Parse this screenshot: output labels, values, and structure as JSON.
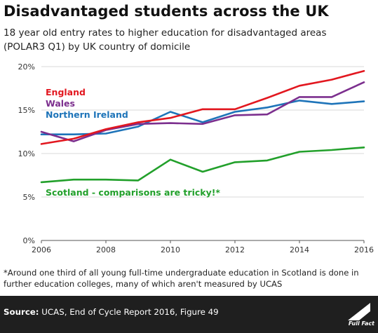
{
  "title": "Disadvantaged students across the UK",
  "subtitle_lines": [
    "18 year old entry rates to higher education for disadvantaged areas",
    "(POLAR3 Q1) by UK country of domicile"
  ],
  "footnote_lines": [
    "*Around one third of all young full-time undergraduate education in Scotland is done in",
    "further education colleges, many of which aren't measured by UCAS"
  ],
  "source": {
    "label": "Source:",
    "text": " UCAS, End of Cycle Report 2016, Figure 49"
  },
  "logo": {
    "text": "Full Fact",
    "icon": "full-fact-logo-icon"
  },
  "chart_data": {
    "type": "line",
    "x": [
      2006,
      2007,
      2008,
      2009,
      2010,
      2011,
      2012,
      2013,
      2014,
      2015,
      2016
    ],
    "xlim": [
      2006,
      2016
    ],
    "ylim": [
      0,
      20
    ],
    "x_ticks": [
      "2006",
      "2008",
      "2010",
      "2012",
      "2014",
      "2016"
    ],
    "y_ticks": [
      "0%",
      "5%",
      "10%",
      "15%",
      "20%"
    ],
    "grid": "horizontal",
    "series": [
      {
        "name": "England",
        "color": "#e2171f",
        "values": [
          11.1,
          11.7,
          12.8,
          13.6,
          14.1,
          15.1,
          15.1,
          16.4,
          17.8,
          18.5,
          19.5
        ]
      },
      {
        "name": "Wales",
        "color": "#7c2f8e",
        "values": [
          12.5,
          11.4,
          12.7,
          13.4,
          13.5,
          13.4,
          14.4,
          14.5,
          16.5,
          16.5,
          18.2
        ]
      },
      {
        "name": "Northern Ireland",
        "color": "#1e74b9",
        "values": [
          12.2,
          12.2,
          12.3,
          13.1,
          14.8,
          13.6,
          14.8,
          15.3,
          16.1,
          15.7,
          16.0
        ]
      },
      {
        "name": "Scotland - comparisons are tricky!*",
        "color": "#22a02b",
        "values": [
          6.7,
          7.0,
          7.0,
          6.9,
          9.3,
          7.9,
          9.0,
          9.2,
          10.2,
          10.4,
          10.7
        ]
      }
    ]
  }
}
